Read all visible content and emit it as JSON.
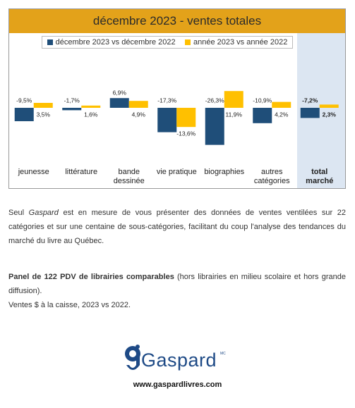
{
  "chart_data": {
    "type": "bar",
    "title": "décembre 2023 - ventes totales",
    "categories": [
      "jeunesse",
      "littérature",
      "bande dessinée",
      "vie pratique",
      "biographies",
      "autres catégories",
      "total marché"
    ],
    "series": [
      {
        "name": "décembre 2023 vs décembre 2022",
        "color": "#1f4e79",
        "values": [
          -9.5,
          -1.7,
          6.9,
          -17.3,
          -26.3,
          -10.9,
          -7.2
        ],
        "value_labels": [
          "-9,5%",
          "-1,7%",
          "6,9%",
          "-17,3%",
          "-26,3%",
          "-10,9%",
          "-7,2%"
        ]
      },
      {
        "name": "année 2023 vs année 2022",
        "color": "#ffc000",
        "values": [
          3.5,
          1.6,
          4.9,
          -13.6,
          11.9,
          4.2,
          2.3
        ],
        "value_labels": [
          "3,5%",
          "1,6%",
          "4,9%",
          "-13,6%",
          "11,9%",
          "4,2%",
          "2,3%"
        ]
      }
    ],
    "highlight_last": true
  },
  "body": {
    "p1_before": "Seul ",
    "p1_em": "Gaspard",
    "p1_after": " est en mesure de vous présenter des données de ventes ventilées sur 22 catégories et sur une centaine de sous-catégories, facilitant du coup l'analyse des tendances du marché du livre au Québec.",
    "p2_bold": "Panel de 122 PDV de librairies comparables",
    "p2_after": " (hors librairies en milieu scolaire et hors grande diffusion).",
    "p3": "Ventes $ à la caisse, 2023 vs 2022."
  },
  "footer": {
    "logo": "Gaspard",
    "mark": "MC",
    "url": "www.gaspardlivres.com"
  }
}
